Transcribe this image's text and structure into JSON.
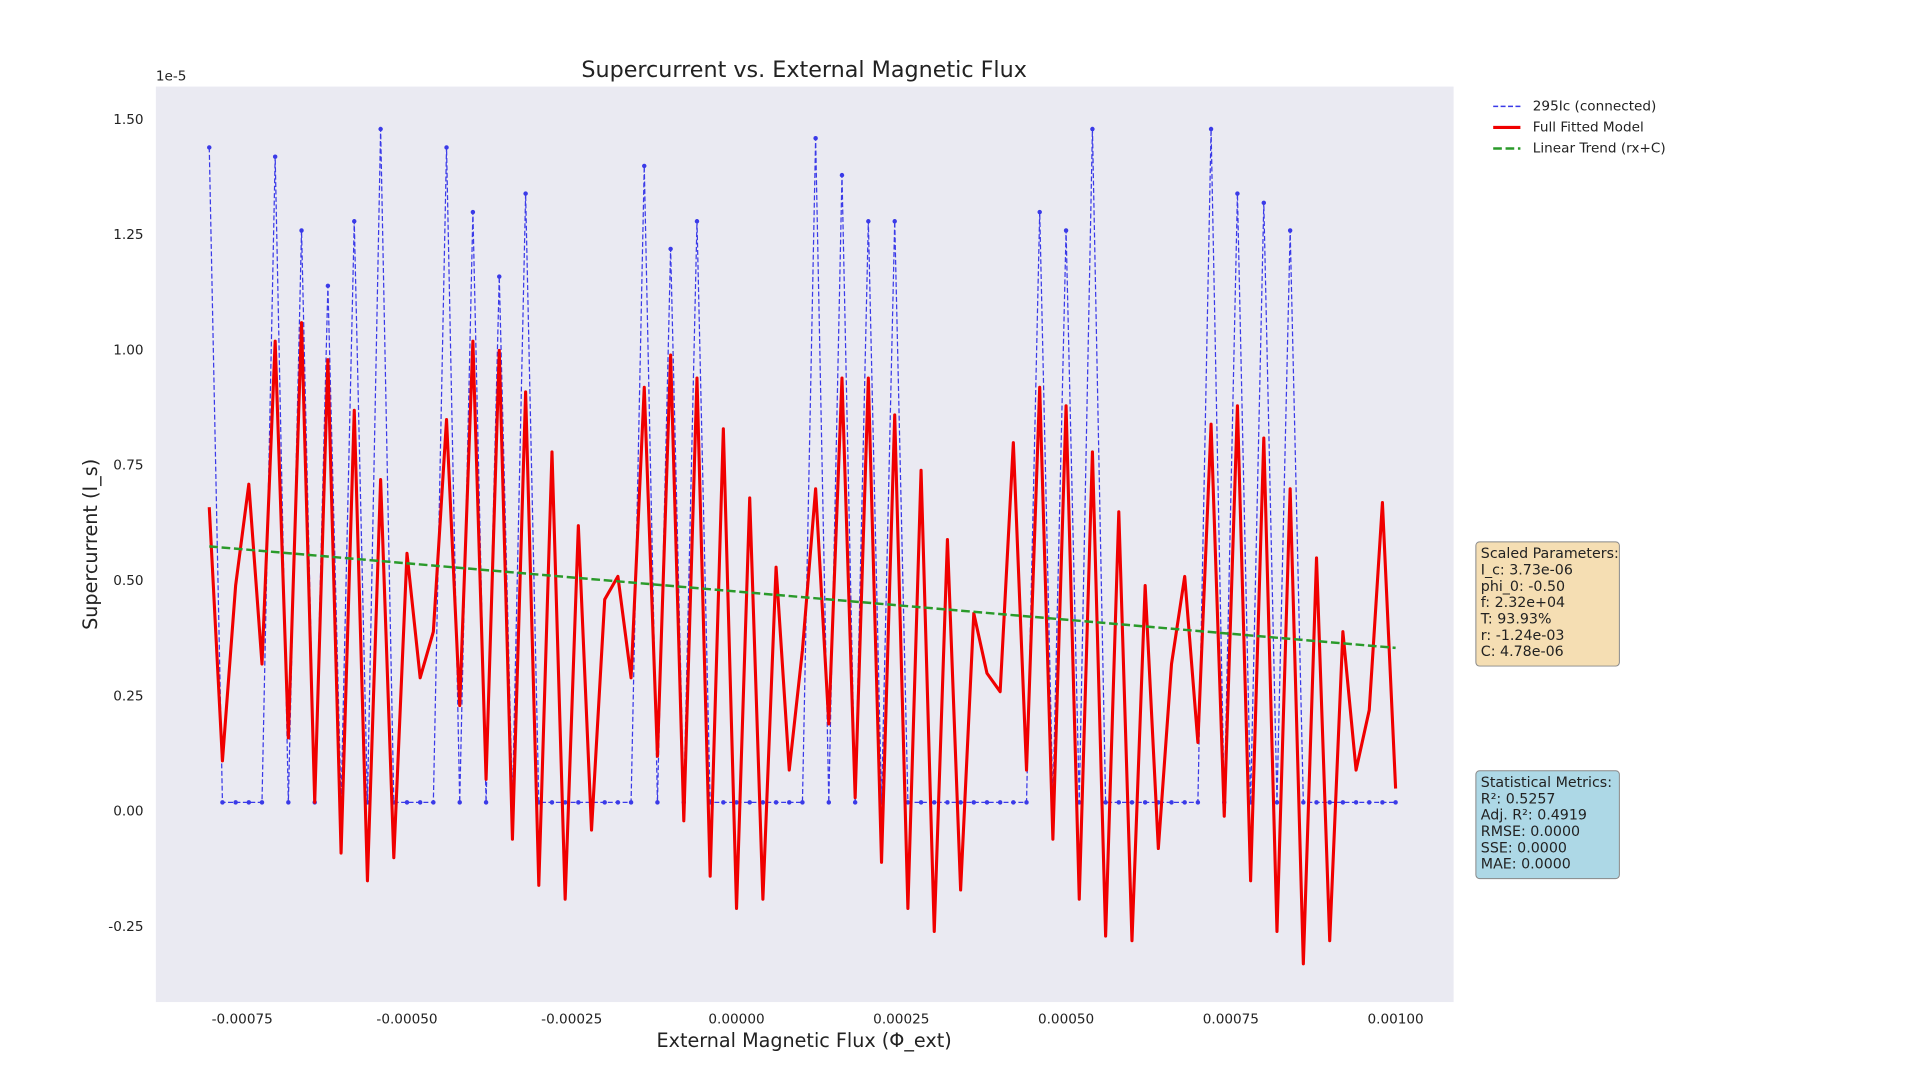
{
  "chart_data": {
    "type": "line",
    "title": "Supercurrent vs. External Magnetic Flux",
    "x_label": "External Magnetic Flux (Φ_ext)",
    "y_label": "Supercurrent (I_s)",
    "y_offset_label": "1e-5",
    "x": [
      -0.0008,
      -0.00078,
      -0.00076,
      -0.00074,
      -0.00072,
      -0.0007,
      -0.00068,
      -0.00066,
      -0.00064,
      -0.00062,
      -0.0006,
      -0.00058,
      -0.00056,
      -0.00054,
      -0.00052,
      -0.0005,
      -0.00048,
      -0.00046,
      -0.00044,
      -0.00042,
      -0.0004,
      -0.00038,
      -0.00036,
      -0.00034,
      -0.00032,
      -0.0003,
      -0.00028,
      -0.00026,
      -0.00024,
      -0.00022,
      -0.0002,
      -0.00018,
      -0.00016,
      -0.00014,
      -0.00012,
      -0.0001,
      -8e-05,
      -6e-05,
      -4e-05,
      -2e-05,
      0,
      2e-05,
      4e-05,
      6e-05,
      8e-05,
      0.0001,
      0.00012,
      0.00014,
      0.00016,
      0.00018,
      0.0002,
      0.00022,
      0.00024,
      0.00026,
      0.00028,
      0.0003,
      0.00032,
      0.00034,
      0.00036,
      0.00038,
      0.0004,
      0.00042,
      0.00044,
      0.00046,
      0.00048,
      0.0005,
      0.00052,
      0.00054,
      0.00056,
      0.00058,
      0.0006,
      0.00062,
      0.00064,
      0.00066,
      0.00068,
      0.0007,
      0.00072,
      0.00074,
      0.00076,
      0.00078,
      0.0008,
      0.00082,
      0.00084,
      0.00086,
      0.00088,
      0.0009,
      0.00092,
      0.00094,
      0.00096,
      0.00098,
      0.001
    ],
    "series": [
      {
        "name": "295Ic (connected)",
        "color": "#3a3ae8",
        "style": "dashed-markers",
        "values": [
          1.44,
          0.02,
          0.02,
          0.02,
          0.02,
          1.42,
          0.02,
          1.26,
          0.02,
          1.14,
          0.02,
          1.28,
          0.02,
          1.48,
          0.02,
          0.02,
          0.02,
          0.02,
          1.44,
          0.02,
          1.3,
          0.02,
          1.16,
          0.02,
          1.34,
          0.02,
          0.02,
          0.02,
          0.02,
          0.02,
          0.02,
          0.02,
          0.02,
          1.4,
          0.02,
          1.22,
          0.02,
          1.28,
          0.02,
          0.02,
          0.02,
          0.02,
          0.02,
          0.02,
          0.02,
          0.02,
          1.46,
          0.02,
          1.38,
          0.02,
          1.28,
          0.02,
          1.28,
          0.02,
          0.02,
          0.02,
          0.02,
          0.02,
          0.02,
          0.02,
          0.02,
          0.02,
          0.02,
          1.3,
          0.02,
          1.26,
          0.02,
          1.48,
          0.02,
          0.02,
          0.02,
          0.02,
          0.02,
          0.02,
          0.02,
          0.02,
          1.48,
          0.02,
          1.34,
          0.02,
          1.32,
          0.02,
          1.26,
          0.02,
          0.02,
          0.02,
          0.02,
          0.02,
          0.02,
          0.02,
          0.02
        ]
      },
      {
        "name": "Full Fitted Model",
        "color": "#f00000",
        "style": "solid",
        "values": [
          0.66,
          0.11,
          0.49,
          0.71,
          0.32,
          1.02,
          0.16,
          1.06,
          0.02,
          0.98,
          -0.09,
          0.87,
          -0.15,
          0.72,
          -0.1,
          0.56,
          0.29,
          0.39,
          0.85,
          0.23,
          1.02,
          0.07,
          1.0,
          -0.06,
          0.91,
          -0.16,
          0.78,
          -0.19,
          0.62,
          -0.04,
          0.46,
          0.51,
          0.29,
          0.92,
          0.12,
          0.99,
          -0.02,
          0.94,
          -0.14,
          0.83,
          -0.21,
          0.68,
          -0.19,
          0.53,
          0.09,
          0.35,
          0.7,
          0.19,
          0.94,
          0.03,
          0.94,
          -0.11,
          0.86,
          -0.21,
          0.74,
          -0.26,
          0.59,
          -0.17,
          0.43,
          0.3,
          0.26,
          0.8,
          0.09,
          0.92,
          -0.06,
          0.88,
          -0.19,
          0.78,
          -0.27,
          0.65,
          -0.28,
          0.49,
          -0.08,
          0.32,
          0.51,
          0.15,
          0.84,
          -0.01,
          0.88,
          -0.15,
          0.81,
          -0.26,
          0.7,
          -0.33,
          0.55,
          -0.28,
          0.39,
          0.09,
          0.22,
          0.67,
          0.05
        ]
      },
      {
        "name": "Linear Trend (rx+C)",
        "color": "#2a9a2a",
        "style": "dashed",
        "x": [
          -0.0008,
          0.001
        ],
        "values": [
          0.575,
          0.355
        ]
      }
    ],
    "xlim": [
      -0.000881,
      0.001088
    ],
    "ylim": [
      -0.413,
      1.572
    ],
    "xticks": [
      {
        "value": -0.00075,
        "label": "-0.00075"
      },
      {
        "value": -0.0005,
        "label": "-0.00050"
      },
      {
        "value": -0.00025,
        "label": "-0.00025"
      },
      {
        "value": 0,
        "label": "0.00000"
      },
      {
        "value": 0.00025,
        "label": "0.00025"
      },
      {
        "value": 0.0005,
        "label": "0.00050"
      },
      {
        "value": 0.00075,
        "label": "0.00075"
      },
      {
        "value": 0.001,
        "label": "0.00100"
      }
    ],
    "yticks": [
      {
        "value": -0.25,
        "label": "-0.25"
      },
      {
        "value": 0,
        "label": "0.00"
      },
      {
        "value": 0.25,
        "label": "0.25"
      },
      {
        "value": 0.5,
        "label": "0.50"
      },
      {
        "value": 0.75,
        "label": "0.75"
      },
      {
        "value": 1,
        "label": "1.00"
      },
      {
        "value": 1.25,
        "label": "1.25"
      },
      {
        "value": 1.5,
        "label": "1.50"
      }
    ],
    "grid": false,
    "background": "#eaeaf2",
    "legend": "outside-upper-right",
    "annotations": [
      {
        "color": "#f5deb3",
        "lines": [
          "Scaled Parameters:",
          "I_c: 3.73e-06",
          "phi_0: -0.50",
          "f: 2.32e+04",
          "T: 93.93%",
          "r: -1.24e-03",
          "C: 4.78e-06"
        ]
      },
      {
        "color": "#add8e6",
        "lines": [
          "Statistical Metrics:",
          "R²: 0.5257",
          "Adj. R²: 0.4919",
          "RMSE: 0.0000",
          "SSE: 0.0000",
          "MAE: 0.0000"
        ]
      }
    ]
  }
}
